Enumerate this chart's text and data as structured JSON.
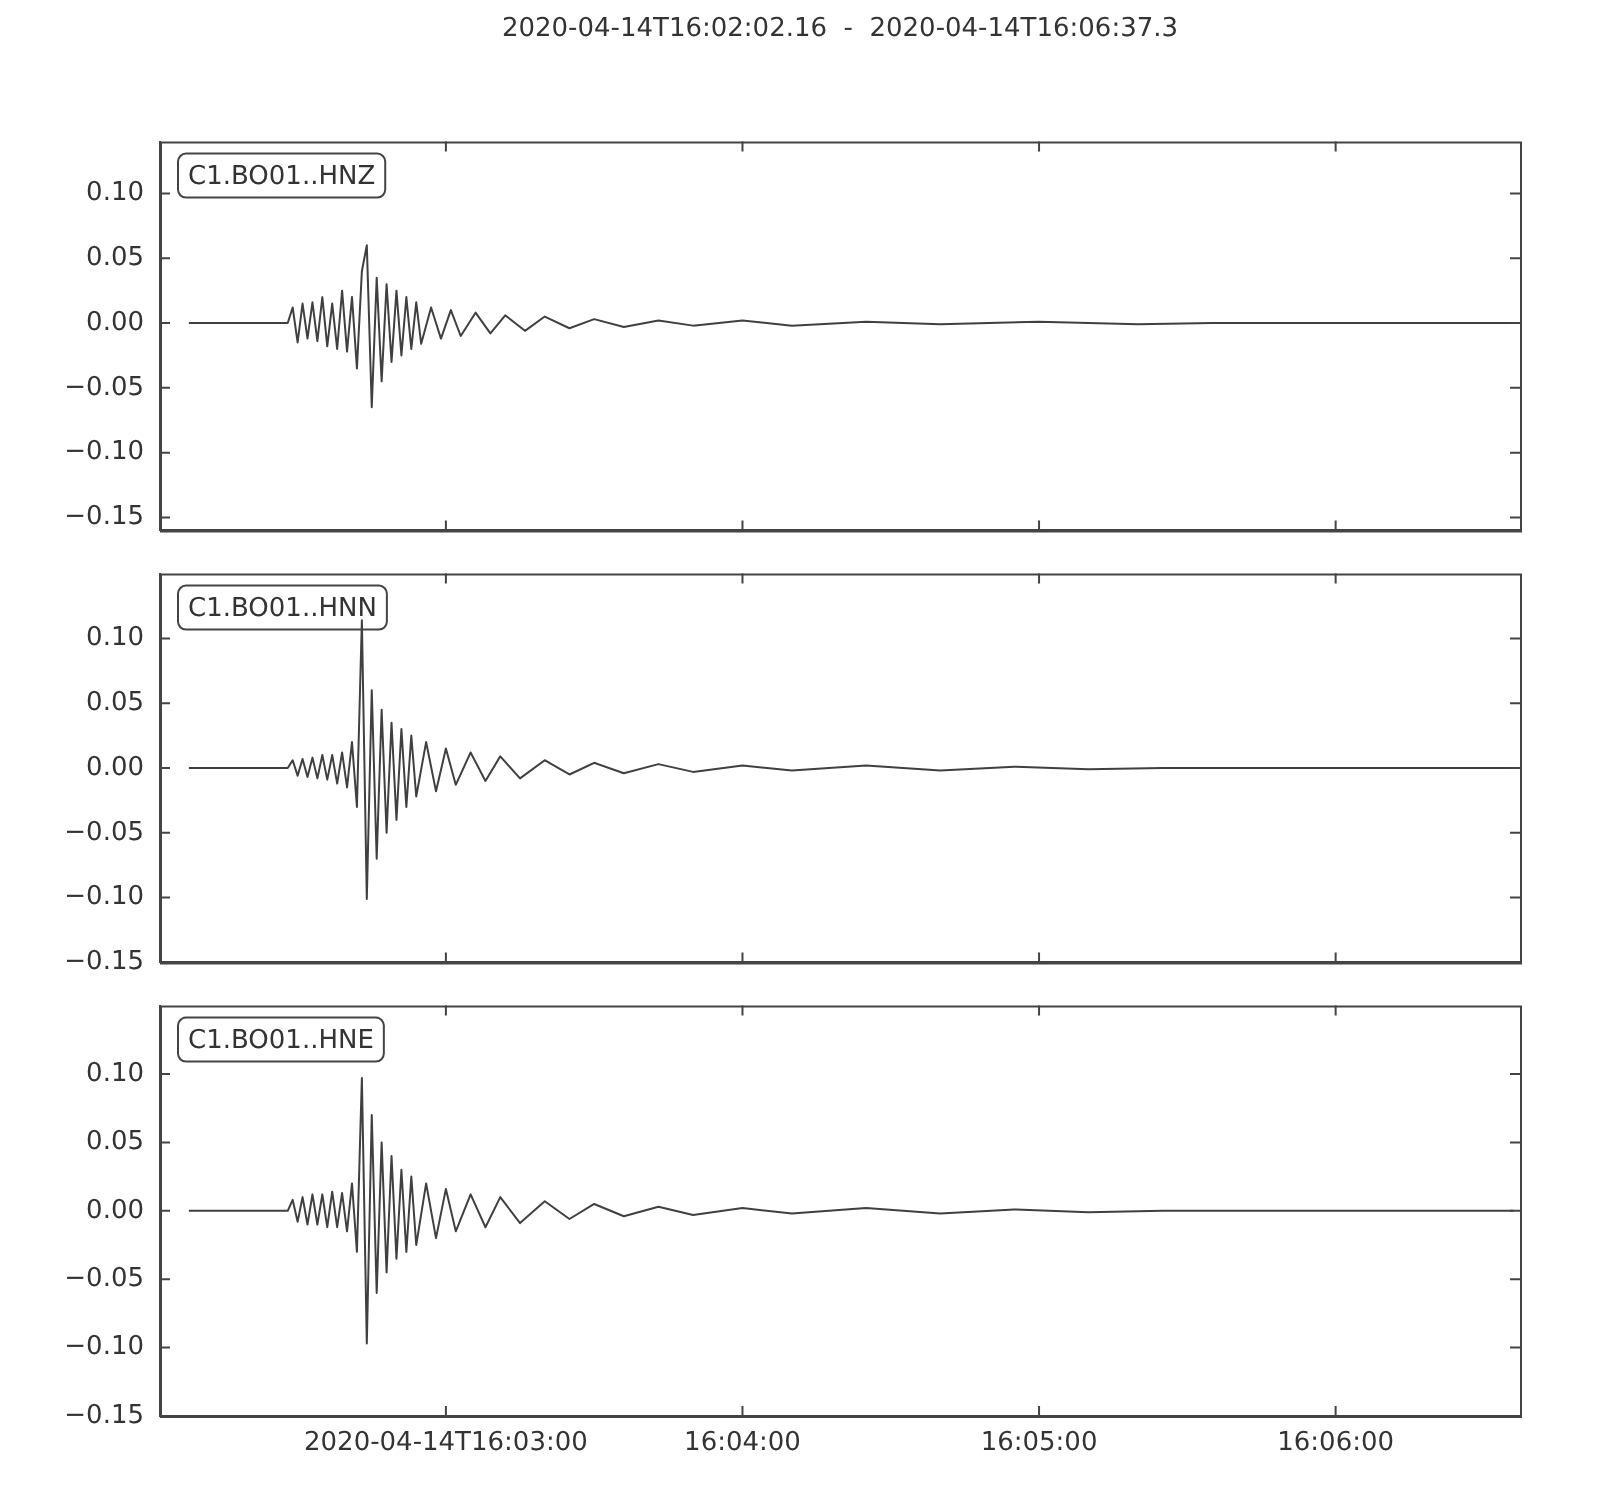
{
  "chart_data": [
    {
      "type": "line",
      "title": "2020-04-14T16:02:02.16  -  2020-04-14T16:06:37.3",
      "annotations": [
        "C1.BO01..HNZ"
      ],
      "color": "#404040",
      "tick_labels": "y",
      "x": [
        "2020-04-14T16:02:08",
        "2020-04-14T16:02:28",
        "2020-04-14T16:02:29",
        "2020-04-14T16:02:30",
        "2020-04-14T16:02:31",
        "2020-04-14T16:02:32",
        "2020-04-14T16:02:33",
        "2020-04-14T16:02:34",
        "2020-04-14T16:02:35",
        "2020-04-14T16:02:36",
        "2020-04-14T16:02:37",
        "2020-04-14T16:02:38",
        "2020-04-14T16:02:39",
        "2020-04-14T16:02:40",
        "2020-04-14T16:02:41",
        "2020-04-14T16:02:42",
        "2020-04-14T16:02:43",
        "2020-04-14T16:02:44",
        "2020-04-14T16:02:45",
        "2020-04-14T16:02:46",
        "2020-04-14T16:02:47",
        "2020-04-14T16:02:48",
        "2020-04-14T16:02:49",
        "2020-04-14T16:02:50",
        "2020-04-14T16:02:51",
        "2020-04-14T16:02:52",
        "2020-04-14T16:02:53",
        "2020-04-14T16:02:54",
        "2020-04-14T16:02:55",
        "2020-04-14T16:02:57",
        "2020-04-14T16:02:59",
        "2020-04-14T16:03:01",
        "2020-04-14T16:03:03",
        "2020-04-14T16:03:06",
        "2020-04-14T16:03:09",
        "2020-04-14T16:03:12",
        "2020-04-14T16:03:16",
        "2020-04-14T16:03:20",
        "2020-04-14T16:03:25",
        "2020-04-14T16:03:30",
        "2020-04-14T16:03:36",
        "2020-04-14T16:03:43",
        "2020-04-14T16:03:50",
        "2020-04-14T16:04:00",
        "2020-04-14T16:04:10",
        "2020-04-14T16:04:25",
        "2020-04-14T16:04:40",
        "2020-04-14T16:05:00",
        "2020-04-14T16:05:20",
        "2020-04-14T16:05:35",
        "2020-04-14T16:06:36"
      ],
      "values": [
        0,
        0,
        0.012,
        -0.015,
        0.015,
        -0.012,
        0.016,
        -0.014,
        0.02,
        -0.018,
        0.015,
        -0.02,
        0.025,
        -0.022,
        0.02,
        -0.035,
        0.04,
        0.06,
        -0.065,
        0.035,
        -0.045,
        0.03,
        -0.03,
        0.025,
        -0.025,
        0.02,
        -0.02,
        0.016,
        -0.016,
        0.012,
        -0.012,
        0.01,
        -0.01,
        0.008,
        -0.008,
        0.006,
        -0.006,
        0.005,
        -0.004,
        0.003,
        -0.003,
        0.002,
        -0.002,
        0.002,
        -0.002,
        0.001,
        -0.001,
        0.001,
        -0.001,
        0,
        0
      ],
      "xlim": [
        "2020-04-14T16:02:02.16",
        "2020-04-14T16:06:37.3"
      ],
      "xticks": [
        {
          "value": "2020-04-14T16:03:00",
          "label": null
        },
        {
          "value": "2020-04-14T16:04:00",
          "label": null
        },
        {
          "value": "2020-04-14T16:05:00",
          "label": null
        },
        {
          "value": "2020-04-14T16:06:00",
          "label": null
        }
      ],
      "ylim": [
        -0.16,
        0.14
      ],
      "yticks": [
        {
          "value": -0.15,
          "label": "−0.15"
        },
        {
          "value": -0.1,
          "label": "−0.10"
        },
        {
          "value": -0.05,
          "label": "−0.05"
        },
        {
          "value": 0,
          "label": "0.00"
        },
        {
          "value": 0.05,
          "label": "0.05"
        },
        {
          "value": 0.1,
          "label": "0.10"
        }
      ]
    },
    {
      "type": "line",
      "annotations": [
        "C1.BO01..HNN"
      ],
      "color": "#404040",
      "tick_labels": "y",
      "x": [
        "2020-04-14T16:02:08",
        "2020-04-14T16:02:28",
        "2020-04-14T16:02:29",
        "2020-04-14T16:02:30",
        "2020-04-14T16:02:31",
        "2020-04-14T16:02:32",
        "2020-04-14T16:02:33",
        "2020-04-14T16:02:34",
        "2020-04-14T16:02:35",
        "2020-04-14T16:02:36",
        "2020-04-14T16:02:37",
        "2020-04-14T16:02:38",
        "2020-04-14T16:02:39",
        "2020-04-14T16:02:40",
        "2020-04-14T16:02:41",
        "2020-04-14T16:02:42",
        "2020-04-14T16:02:43",
        "2020-04-14T16:02:44",
        "2020-04-14T16:02:45",
        "2020-04-14T16:02:46",
        "2020-04-14T16:02:47",
        "2020-04-14T16:02:48",
        "2020-04-14T16:02:49",
        "2020-04-14T16:02:50",
        "2020-04-14T16:02:51",
        "2020-04-14T16:02:52",
        "2020-04-14T16:02:53",
        "2020-04-14T16:02:54",
        "2020-04-14T16:02:56",
        "2020-04-14T16:02:58",
        "2020-04-14T16:03:00",
        "2020-04-14T16:03:02",
        "2020-04-14T16:03:05",
        "2020-04-14T16:03:08",
        "2020-04-14T16:03:11",
        "2020-04-14T16:03:15",
        "2020-04-14T16:03:20",
        "2020-04-14T16:03:25",
        "2020-04-14T16:03:30",
        "2020-04-14T16:03:36",
        "2020-04-14T16:03:43",
        "2020-04-14T16:03:50",
        "2020-04-14T16:04:00",
        "2020-04-14T16:04:10",
        "2020-04-14T16:04:25",
        "2020-04-14T16:04:40",
        "2020-04-14T16:04:55",
        "2020-04-14T16:05:10",
        "2020-04-14T16:05:25",
        "2020-04-14T16:06:36"
      ],
      "values": [
        0,
        0,
        0.006,
        -0.006,
        0.007,
        -0.007,
        0.008,
        -0.008,
        0.01,
        -0.009,
        0.01,
        -0.012,
        0.012,
        -0.015,
        0.02,
        -0.03,
        0.114,
        -0.101,
        0.06,
        -0.07,
        0.045,
        -0.05,
        0.035,
        -0.04,
        0.03,
        -0.03,
        0.025,
        -0.022,
        0.02,
        -0.018,
        0.015,
        -0.013,
        0.012,
        -0.01,
        0.009,
        -0.008,
        0.006,
        -0.005,
        0.004,
        -0.004,
        0.003,
        -0.003,
        0.002,
        -0.002,
        0.002,
        -0.002,
        0.001,
        -0.001,
        0,
        0
      ],
      "xlim": [
        "2020-04-14T16:02:02.16",
        "2020-04-14T16:06:37.3"
      ],
      "xticks": [
        {
          "value": "2020-04-14T16:03:00",
          "label": null
        },
        {
          "value": "2020-04-14T16:04:00",
          "label": null
        },
        {
          "value": "2020-04-14T16:05:00",
          "label": null
        },
        {
          "value": "2020-04-14T16:06:00",
          "label": null
        }
      ],
      "ylim": [
        -0.15,
        0.15
      ],
      "yticks": [
        {
          "value": -0.15,
          "label": "−0.15"
        },
        {
          "value": -0.1,
          "label": "−0.10"
        },
        {
          "value": -0.05,
          "label": "−0.05"
        },
        {
          "value": 0,
          "label": "0.00"
        },
        {
          "value": 0.05,
          "label": "0.05"
        },
        {
          "value": 0.1,
          "label": "0.10"
        }
      ]
    },
    {
      "type": "line",
      "annotations": [
        "C1.BO01..HNE"
      ],
      "color": "#404040",
      "x": [
        "2020-04-14T16:02:08",
        "2020-04-14T16:02:28",
        "2020-04-14T16:02:29",
        "2020-04-14T16:02:30",
        "2020-04-14T16:02:31",
        "2020-04-14T16:02:32",
        "2020-04-14T16:02:33",
        "2020-04-14T16:02:34",
        "2020-04-14T16:02:35",
        "2020-04-14T16:02:36",
        "2020-04-14T16:02:37",
        "2020-04-14T16:02:38",
        "2020-04-14T16:02:39",
        "2020-04-14T16:02:40",
        "2020-04-14T16:02:41",
        "2020-04-14T16:02:42",
        "2020-04-14T16:02:43",
        "2020-04-14T16:02:44",
        "2020-04-14T16:02:45",
        "2020-04-14T16:02:46",
        "2020-04-14T16:02:47",
        "2020-04-14T16:02:48",
        "2020-04-14T16:02:49",
        "2020-04-14T16:02:50",
        "2020-04-14T16:02:51",
        "2020-04-14T16:02:52",
        "2020-04-14T16:02:53",
        "2020-04-14T16:02:54",
        "2020-04-14T16:02:56",
        "2020-04-14T16:02:58",
        "2020-04-14T16:03:00",
        "2020-04-14T16:03:02",
        "2020-04-14T16:03:05",
        "2020-04-14T16:03:08",
        "2020-04-14T16:03:11",
        "2020-04-14T16:03:15",
        "2020-04-14T16:03:20",
        "2020-04-14T16:03:25",
        "2020-04-14T16:03:30",
        "2020-04-14T16:03:36",
        "2020-04-14T16:03:43",
        "2020-04-14T16:03:50",
        "2020-04-14T16:04:00",
        "2020-04-14T16:04:10",
        "2020-04-14T16:04:25",
        "2020-04-14T16:04:40",
        "2020-04-14T16:04:55",
        "2020-04-14T16:05:10",
        "2020-04-14T16:05:25",
        "2020-04-14T16:06:36"
      ],
      "values": [
        0,
        0,
        0.008,
        -0.008,
        0.01,
        -0.01,
        0.012,
        -0.01,
        0.012,
        -0.012,
        0.014,
        -0.012,
        0.013,
        -0.015,
        0.02,
        -0.03,
        0.097,
        -0.097,
        0.07,
        -0.06,
        0.05,
        -0.045,
        0.04,
        -0.035,
        0.03,
        -0.03,
        0.025,
        -0.025,
        0.02,
        -0.02,
        0.016,
        -0.015,
        0.012,
        -0.012,
        0.01,
        -0.009,
        0.007,
        -0.006,
        0.005,
        -0.004,
        0.003,
        -0.003,
        0.002,
        -0.002,
        0.002,
        -0.002,
        0.001,
        -0.001,
        0,
        0
      ],
      "xlim": [
        "2020-04-14T16:02:02.16",
        "2020-04-14T16:06:37.3"
      ],
      "xticks": [
        {
          "value": "2020-04-14T16:03:00",
          "label": "2020-04-14T16:03:00"
        },
        {
          "value": "2020-04-14T16:04:00",
          "label": "16:04:00"
        },
        {
          "value": "2020-04-14T16:05:00",
          "label": "16:05:00"
        },
        {
          "value": "2020-04-14T16:06:00",
          "label": "16:06:00"
        }
      ],
      "ylim": [
        -0.15,
        0.15
      ],
      "yticks": [
        {
          "value": -0.15,
          "label": "−0.15"
        },
        {
          "value": -0.1,
          "label": "−0.10"
        },
        {
          "value": -0.05,
          "label": "−0.05"
        },
        {
          "value": 0,
          "label": "0.00"
        },
        {
          "value": 0.05,
          "label": "0.05"
        },
        {
          "value": 0.1,
          "label": "0.10"
        }
      ]
    }
  ]
}
